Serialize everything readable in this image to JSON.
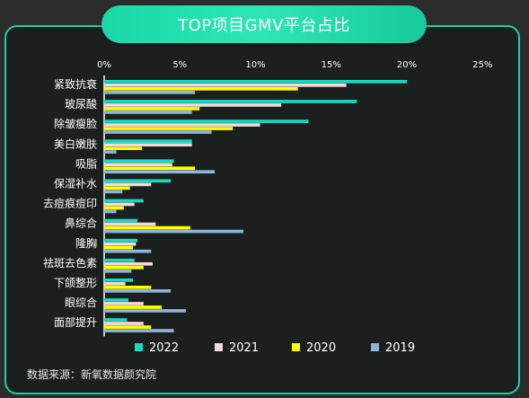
{
  "page": {
    "title": "TOP项目GMV平台占比",
    "source": "数据来源：新氧数据颜究院"
  },
  "chart_data": {
    "type": "bar",
    "orientation": "horizontal",
    "title": "TOP项目GMV平台占比",
    "categories": [
      "紧致抗衰",
      "玻尿酸",
      "除皱瘦脸",
      "美白嫩肤",
      "吸脂",
      "保湿补水",
      "去痘痕痘印",
      "鼻综合",
      "隆胸",
      "祛斑去色素",
      "下颌整形",
      "眼综合",
      "面部提升"
    ],
    "series": [
      {
        "name": "2022",
        "color": "#19d9c0",
        "values": [
          20.0,
          16.7,
          13.5,
          5.8,
          4.6,
          4.4,
          2.6,
          2.2,
          2.2,
          2.0,
          1.9,
          1.6,
          1.5
        ]
      },
      {
        "name": "2021",
        "color": "#f5d9d9",
        "values": [
          16.0,
          11.7,
          10.3,
          5.8,
          4.5,
          3.1,
          2.0,
          3.4,
          2.1,
          3.2,
          1.4,
          2.6,
          2.6
        ]
      },
      {
        "name": "2020",
        "color": "#ffff00",
        "values": [
          12.8,
          6.3,
          8.5,
          2.5,
          6.0,
          1.7,
          1.3,
          5.7,
          1.9,
          2.6,
          3.1,
          3.8,
          3.1
        ]
      },
      {
        "name": "2019",
        "color": "#8fb3d9",
        "values": [
          6.0,
          5.8,
          7.1,
          0.8,
          7.3,
          1.2,
          0.8,
          9.2,
          3.1,
          1.8,
          4.4,
          5.4,
          4.6
        ]
      }
    ],
    "xaxis": {
      "ticks": [
        "0%",
        "5%",
        "10%",
        "15%",
        "20%",
        "25%"
      ],
      "range": [
        0,
        25
      ],
      "position": "top"
    },
    "grid": false,
    "legend": {
      "position": "bottom"
    }
  }
}
